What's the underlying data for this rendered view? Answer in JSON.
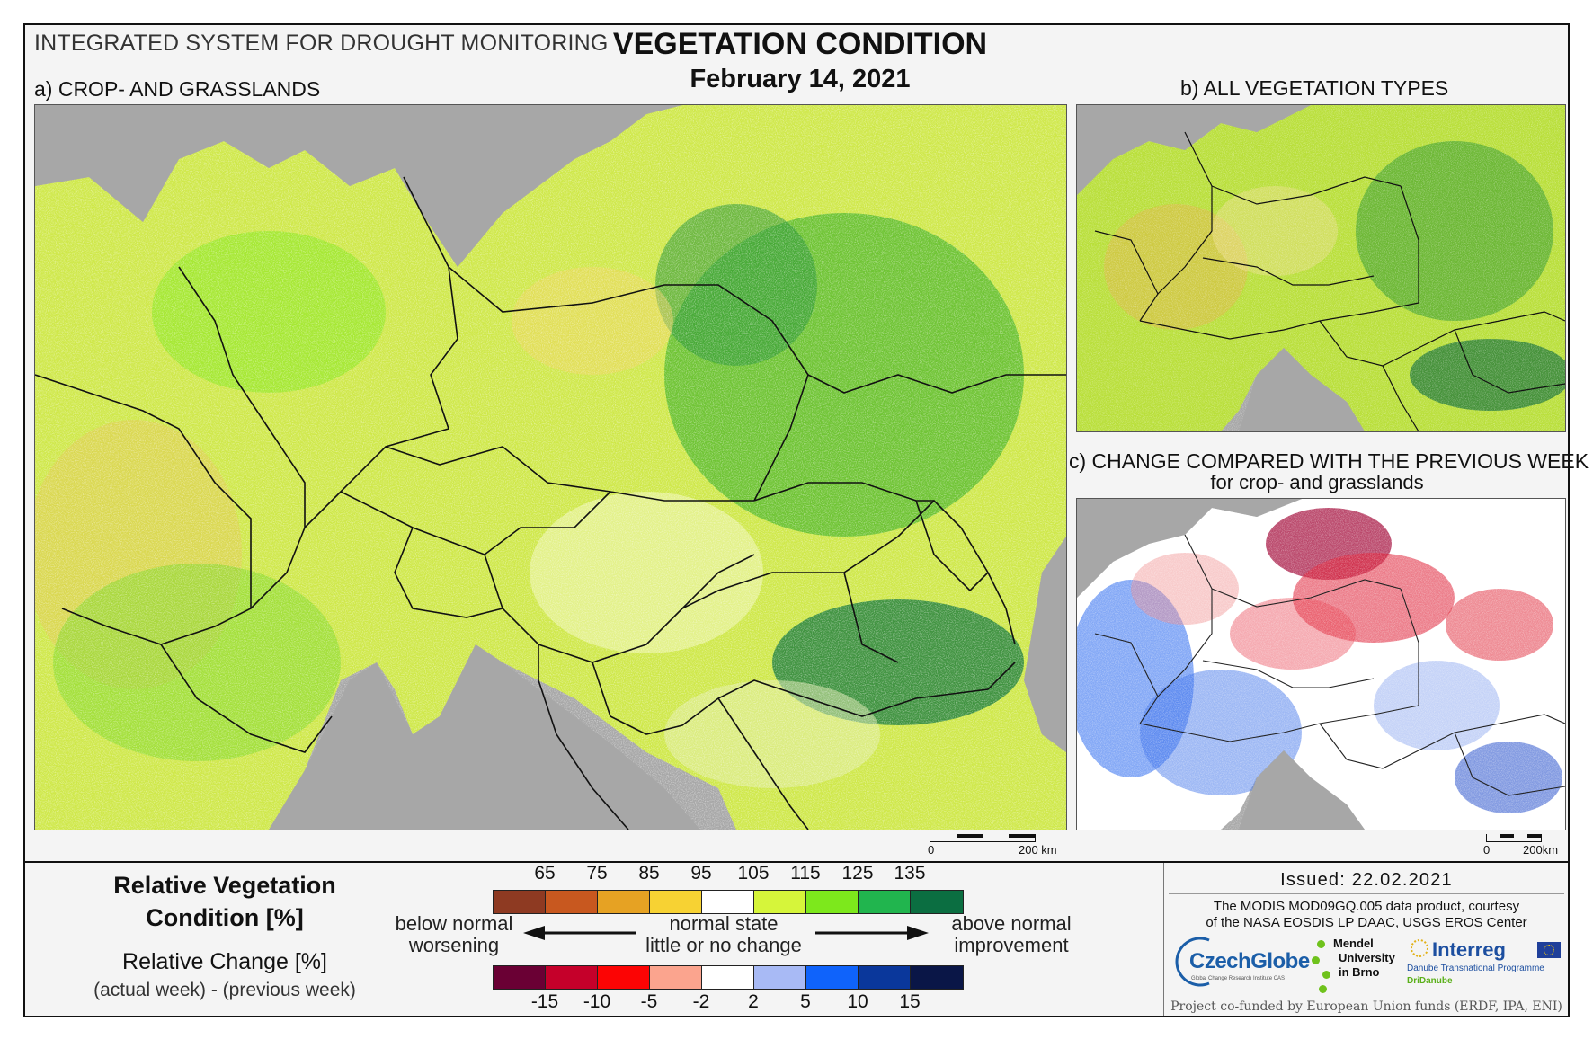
{
  "header": {
    "system": "INTEGRATED SYSTEM FOR DROUGHT MONITORING",
    "title": "VEGETATION CONDITION",
    "date": "February 14, 2021"
  },
  "panels": {
    "a_label": "a) CROP- AND GRASSLANDS",
    "b_label": "b) ALL VEGETATION TYPES",
    "c_label": "c) CHANGE COMPARED WITH THE PREVIOUS WEEK",
    "c_sublabel": "for crop- and grasslands"
  },
  "scalebars": {
    "a": {
      "zero": "0",
      "distance": "200 km"
    },
    "c": {
      "zero": "0",
      "distance": "200km"
    }
  },
  "legend": {
    "title_line1": "Relative Vegetation",
    "title_line2": "Condition [%]",
    "change_title": "Relative Change [%]",
    "change_formula": "(actual week) - (previous week)",
    "rvc_ticks": [
      "65",
      "75",
      "85",
      "95",
      "105",
      "115",
      "125",
      "135"
    ],
    "rvc_colors": [
      "#8e3a22",
      "#c8581f",
      "#e6a223",
      "#f7d233",
      "#ffffff",
      "#d6f53a",
      "#7de81c",
      "#21b54e",
      "#0b6e41"
    ],
    "change_ticks": [
      "-15",
      "-10",
      "-5",
      "-2",
      "2",
      "5",
      "10",
      "15"
    ],
    "change_colors": [
      "#6a0034",
      "#c5002a",
      "#fc0404",
      "#fba48e",
      "#ffffff",
      "#a8baf5",
      "#0f63fb",
      "#0a379b",
      "#0a1647"
    ],
    "left_upper": "below normal",
    "left_lower": "worsening",
    "mid_upper": "normal state",
    "mid_lower": "little or no change",
    "right_upper": "above normal",
    "right_lower": "improvement"
  },
  "footer": {
    "issued": "Issued: 22.02.2021",
    "credit_line1": "The MODIS MOD09GQ.005 data product, courtesy",
    "credit_line2": "of the NASA EOSDIS LP DAAC, USGS EROS Center",
    "logo_czechglobe": "CzechGlobe",
    "logo_czechglobe_sub": "Global Change Research Institute CAS",
    "logo_mendel_1": "Mendel",
    "logo_mendel_2": "University",
    "logo_mendel_3": "in Brno",
    "logo_interreg": "Interreg",
    "logo_interreg_sub1": "Danube Transnational Programme",
    "logo_interreg_sub2": "DriDanube",
    "cofund": "Project co-funded by European Union funds (ERDF, IPA, ENI)"
  }
}
